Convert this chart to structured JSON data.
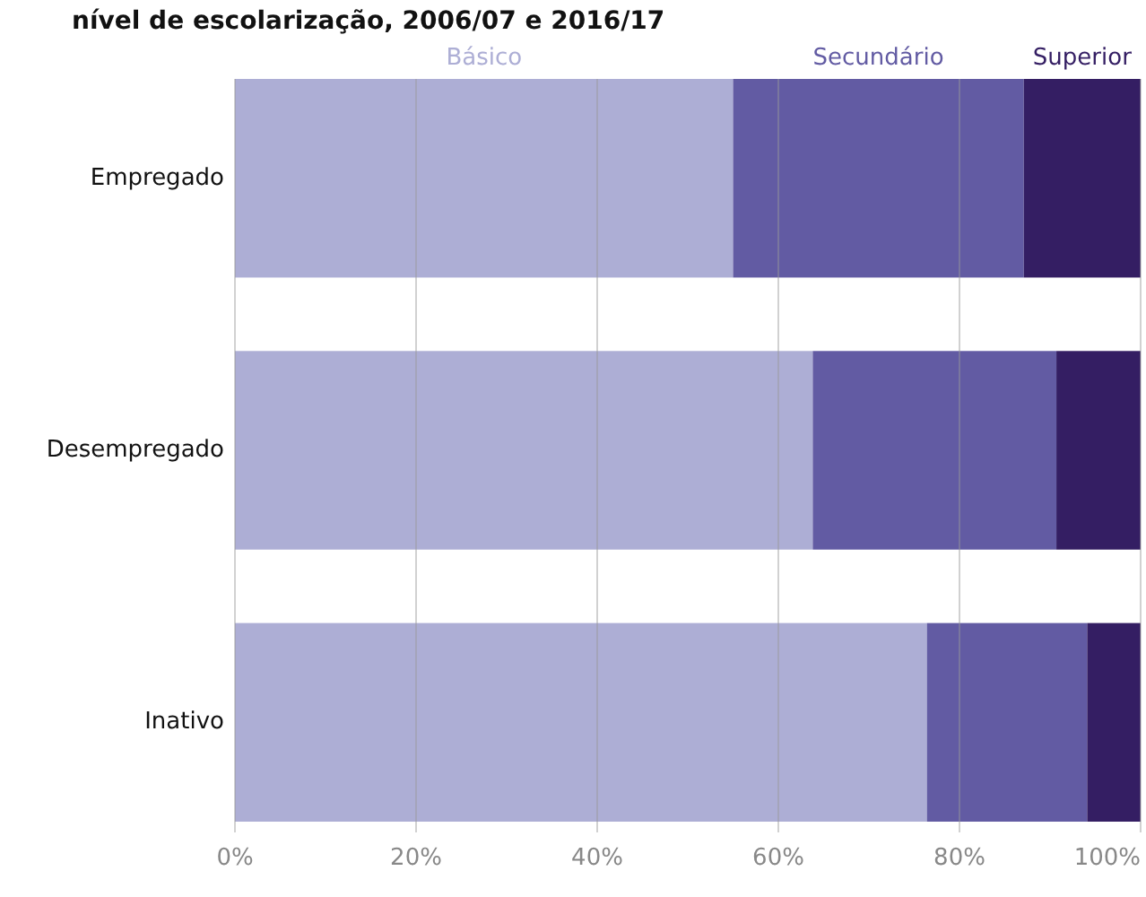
{
  "chart_data": {
    "type": "bar",
    "orientation": "horizontal",
    "stacked": true,
    "title": "nível de escolarização, 2006/07 e 2016/17",
    "categories": [
      "Empregado",
      "Desempregado",
      "Inativo"
    ],
    "series": [
      {
        "name": "Básico",
        "color": "#adaed5",
        "values": [
          55.0,
          63.8,
          76.4
        ]
      },
      {
        "name": "Secundário",
        "color": "#625ba3",
        "values": [
          32.1,
          26.9,
          17.7
        ]
      },
      {
        "name": "Superior",
        "color": "#341e63",
        "values": [
          12.9,
          9.3,
          5.9
        ]
      }
    ],
    "xlim": [
      0,
      100
    ],
    "xticks": [
      {
        "value": 0,
        "label": "0%"
      },
      {
        "value": 20,
        "label": "20%"
      },
      {
        "value": 40,
        "label": "40%"
      },
      {
        "value": 60,
        "label": "60%"
      },
      {
        "value": 80,
        "label": "80%"
      },
      {
        "value": 100,
        "label": "100%"
      }
    ],
    "grid": "x",
    "legend": "top"
  }
}
